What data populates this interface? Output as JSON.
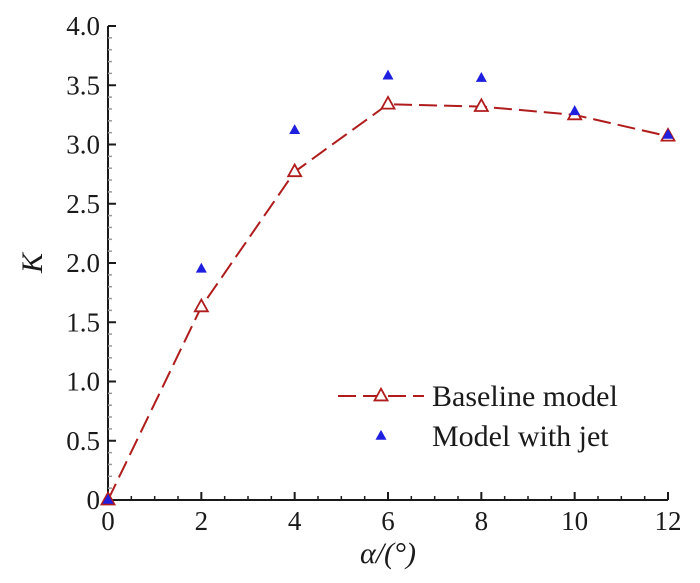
{
  "chart_data": {
    "type": "line",
    "xlabel": "α/(°)",
    "ylabel": "K",
    "xlim": [
      0,
      12
    ],
    "ylim": [
      0,
      4.0
    ],
    "x_ticks": [
      0,
      2,
      4,
      6,
      8,
      10,
      12
    ],
    "x_tick_labels": [
      "0",
      "2",
      "4",
      "6",
      "8",
      "10",
      "12"
    ],
    "y_ticks": [
      0,
      0.5,
      1.0,
      1.5,
      2.0,
      2.5,
      3.0,
      3.5,
      4.0
    ],
    "y_tick_labels": [
      "0",
      "0.5",
      "1.0",
      "1.5",
      "2.0",
      "2.5",
      "3.0",
      "3.5",
      "4.0"
    ],
    "grid": false,
    "legend_position": "bottom-right",
    "series": [
      {
        "name": "Baseline model",
        "style": "dashed line with open triangle markers",
        "color": "#b01c1c",
        "x": [
          0,
          2,
          4,
          6,
          8,
          10,
          12
        ],
        "y": [
          0,
          1.63,
          2.77,
          3.34,
          3.32,
          3.25,
          3.07
        ]
      },
      {
        "name": "Model with jet",
        "style": "filled triangle markers",
        "color": "#1f1fe0",
        "x": [
          0,
          2,
          4,
          6,
          8,
          10,
          12
        ],
        "y": [
          0,
          1.95,
          3.12,
          3.58,
          3.56,
          3.28,
          3.08
        ]
      }
    ]
  }
}
